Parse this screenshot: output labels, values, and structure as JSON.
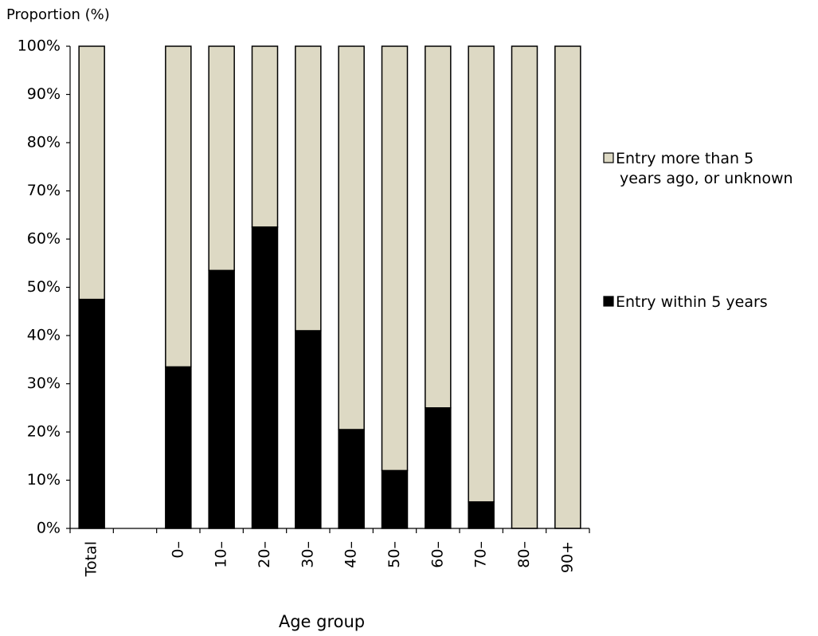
{
  "chart_data": {
    "type": "bar",
    "stacked": true,
    "title": "",
    "ylabel": "Proportion (%)",
    "xlabel": "Age group",
    "ylim": [
      0,
      100
    ],
    "yticks": [
      "0%",
      "10%",
      "20%",
      "30%",
      "40%",
      "50%",
      "60%",
      "70%",
      "80%",
      "90%",
      "100%"
    ],
    "categories": [
      "Total",
      "",
      "0–",
      "10–",
      "20–",
      "30–",
      "40–",
      "50–",
      "60–",
      "70–",
      "80–",
      "90+"
    ],
    "series": [
      {
        "name": "Entry within 5 years",
        "color": "#000000",
        "values": [
          47.5,
          null,
          33.5,
          53.5,
          62.5,
          41,
          20.5,
          12,
          25,
          5.5,
          0,
          0
        ]
      },
      {
        "name": "Entry more than 5 years ago, or unknown",
        "color": "#ddd9c4",
        "values": [
          52.5,
          null,
          66.5,
          46.5,
          37.5,
          59,
          79.5,
          88,
          75,
          94.5,
          100,
          100
        ]
      }
    ],
    "legend": {
      "position": "right",
      "items": [
        {
          "lines": [
            "Entry more than 5",
            "years ago, or unknown"
          ],
          "color": "#ddd9c4"
        },
        {
          "lines": [
            "Entry within 5 years"
          ],
          "color": "#000000"
        }
      ]
    },
    "grid": false
  }
}
